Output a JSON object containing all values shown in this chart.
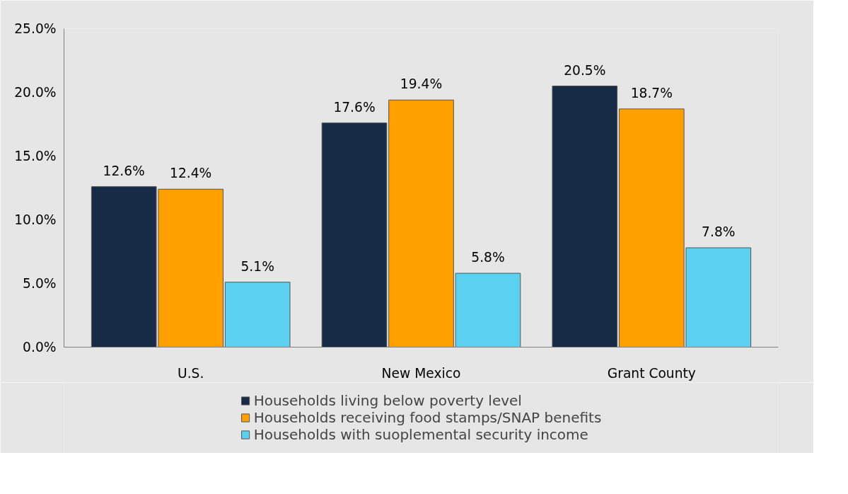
{
  "chart_data": {
    "type": "bar",
    "categories": [
      "U.S.",
      "New Mexico",
      "Grant County"
    ],
    "series": [
      {
        "name": "Households living below poverty level",
        "color": "#172a46",
        "values": [
          12.6,
          17.6,
          20.5
        ],
        "value_labels": [
          "12.6%",
          "17.6%",
          "20.5%"
        ]
      },
      {
        "name": "Households receiving food stamps/SNAP benefits",
        "color": "#ff9f00",
        "values": [
          12.4,
          19.4,
          18.7
        ],
        "value_labels": [
          "12.4%",
          "19.4%",
          "18.7%"
        ]
      },
      {
        "name": "Households with suoplemental security income",
        "color": "#5bd0f0",
        "values": [
          5.1,
          5.8,
          7.8
        ],
        "value_labels": [
          "5.1%",
          "5.8%",
          "7.8%"
        ]
      }
    ],
    "ylim": [
      0,
      25
    ],
    "yticks": [
      {
        "value": 0,
        "label": "0.0%"
      },
      {
        "value": 5,
        "label": "5.0%"
      },
      {
        "value": 10,
        "label": "10.0%"
      },
      {
        "value": 15,
        "label": "15.0%"
      },
      {
        "value": 20,
        "label": "20.0%"
      },
      {
        "value": 25,
        "label": "25.0%"
      }
    ],
    "legend": "bottom"
  }
}
